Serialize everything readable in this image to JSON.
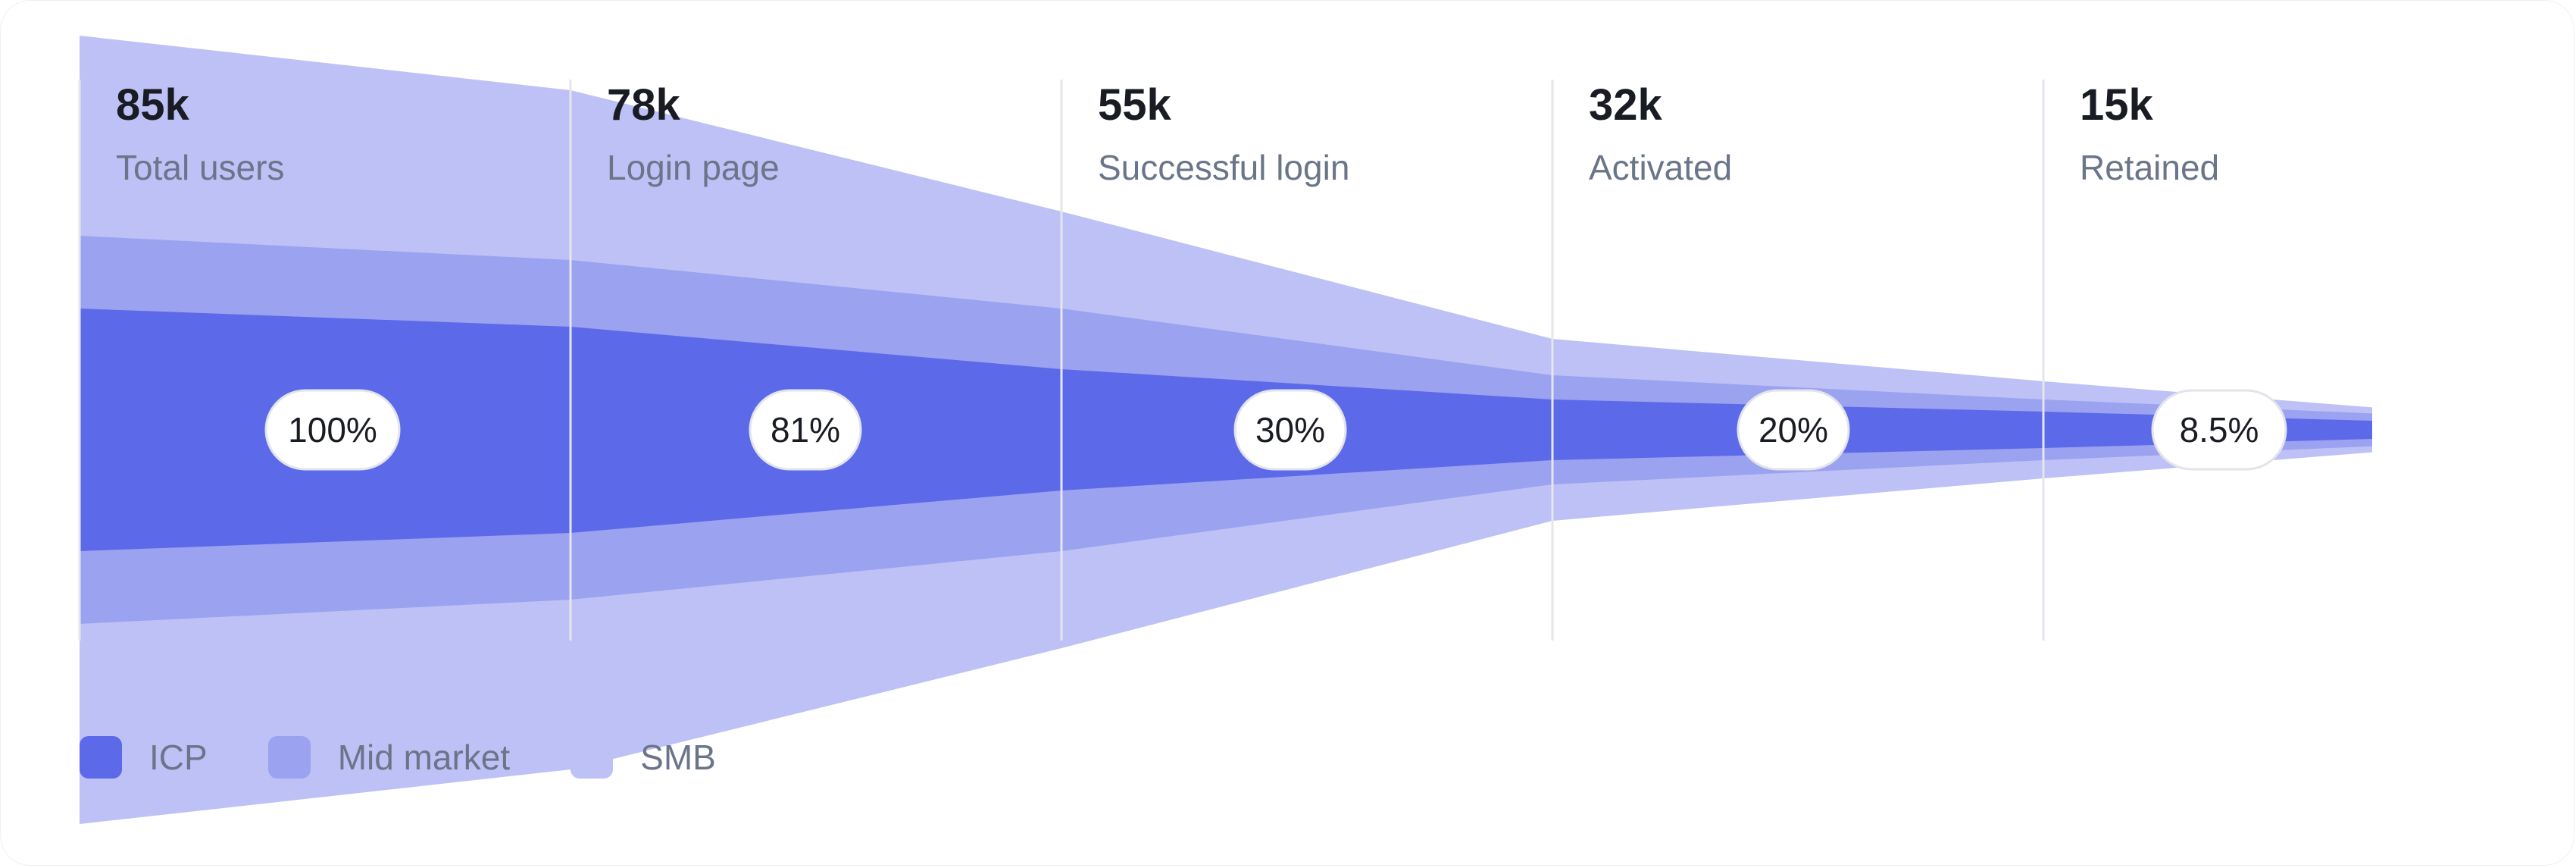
{
  "chart_data": {
    "type": "funnel",
    "stages": [
      {
        "value_label": "85k",
        "name": "Total users",
        "percent_label": "100%",
        "segments": {
          "ICP": 20,
          "Mid market": 12,
          "SMB": 33
        }
      },
      {
        "value_label": "78k",
        "name": "Login page",
        "percent_label": "81%",
        "segments": {
          "ICP": 17,
          "Mid market": 11,
          "SMB": 28
        }
      },
      {
        "value_label": "55k",
        "name": "Successful login",
        "percent_label": "30%",
        "segments": {
          "ICP": 10,
          "Mid market": 10,
          "SMB": 16
        }
      },
      {
        "value_label": "32k",
        "name": "Activated",
        "percent_label": "20%",
        "segments": {
          "ICP": 5,
          "Mid market": 4,
          "SMB": 6
        }
      },
      {
        "value_label": "15k",
        "name": "Retained",
        "percent_label": "8.5%",
        "segments": {
          "ICP": 3,
          "Mid market": 2,
          "SMB": 3
        }
      }
    ],
    "end_segments": {
      "ICP": 1.5,
      "Mid market": 1.2,
      "SMB": 1
    },
    "series": [
      {
        "name": "ICP",
        "color": "#5c69e8"
      },
      {
        "name": "Mid market",
        "color": "#9ba2f0"
      },
      {
        "name": "SMB",
        "color": "#bdc1f6"
      }
    ]
  }
}
